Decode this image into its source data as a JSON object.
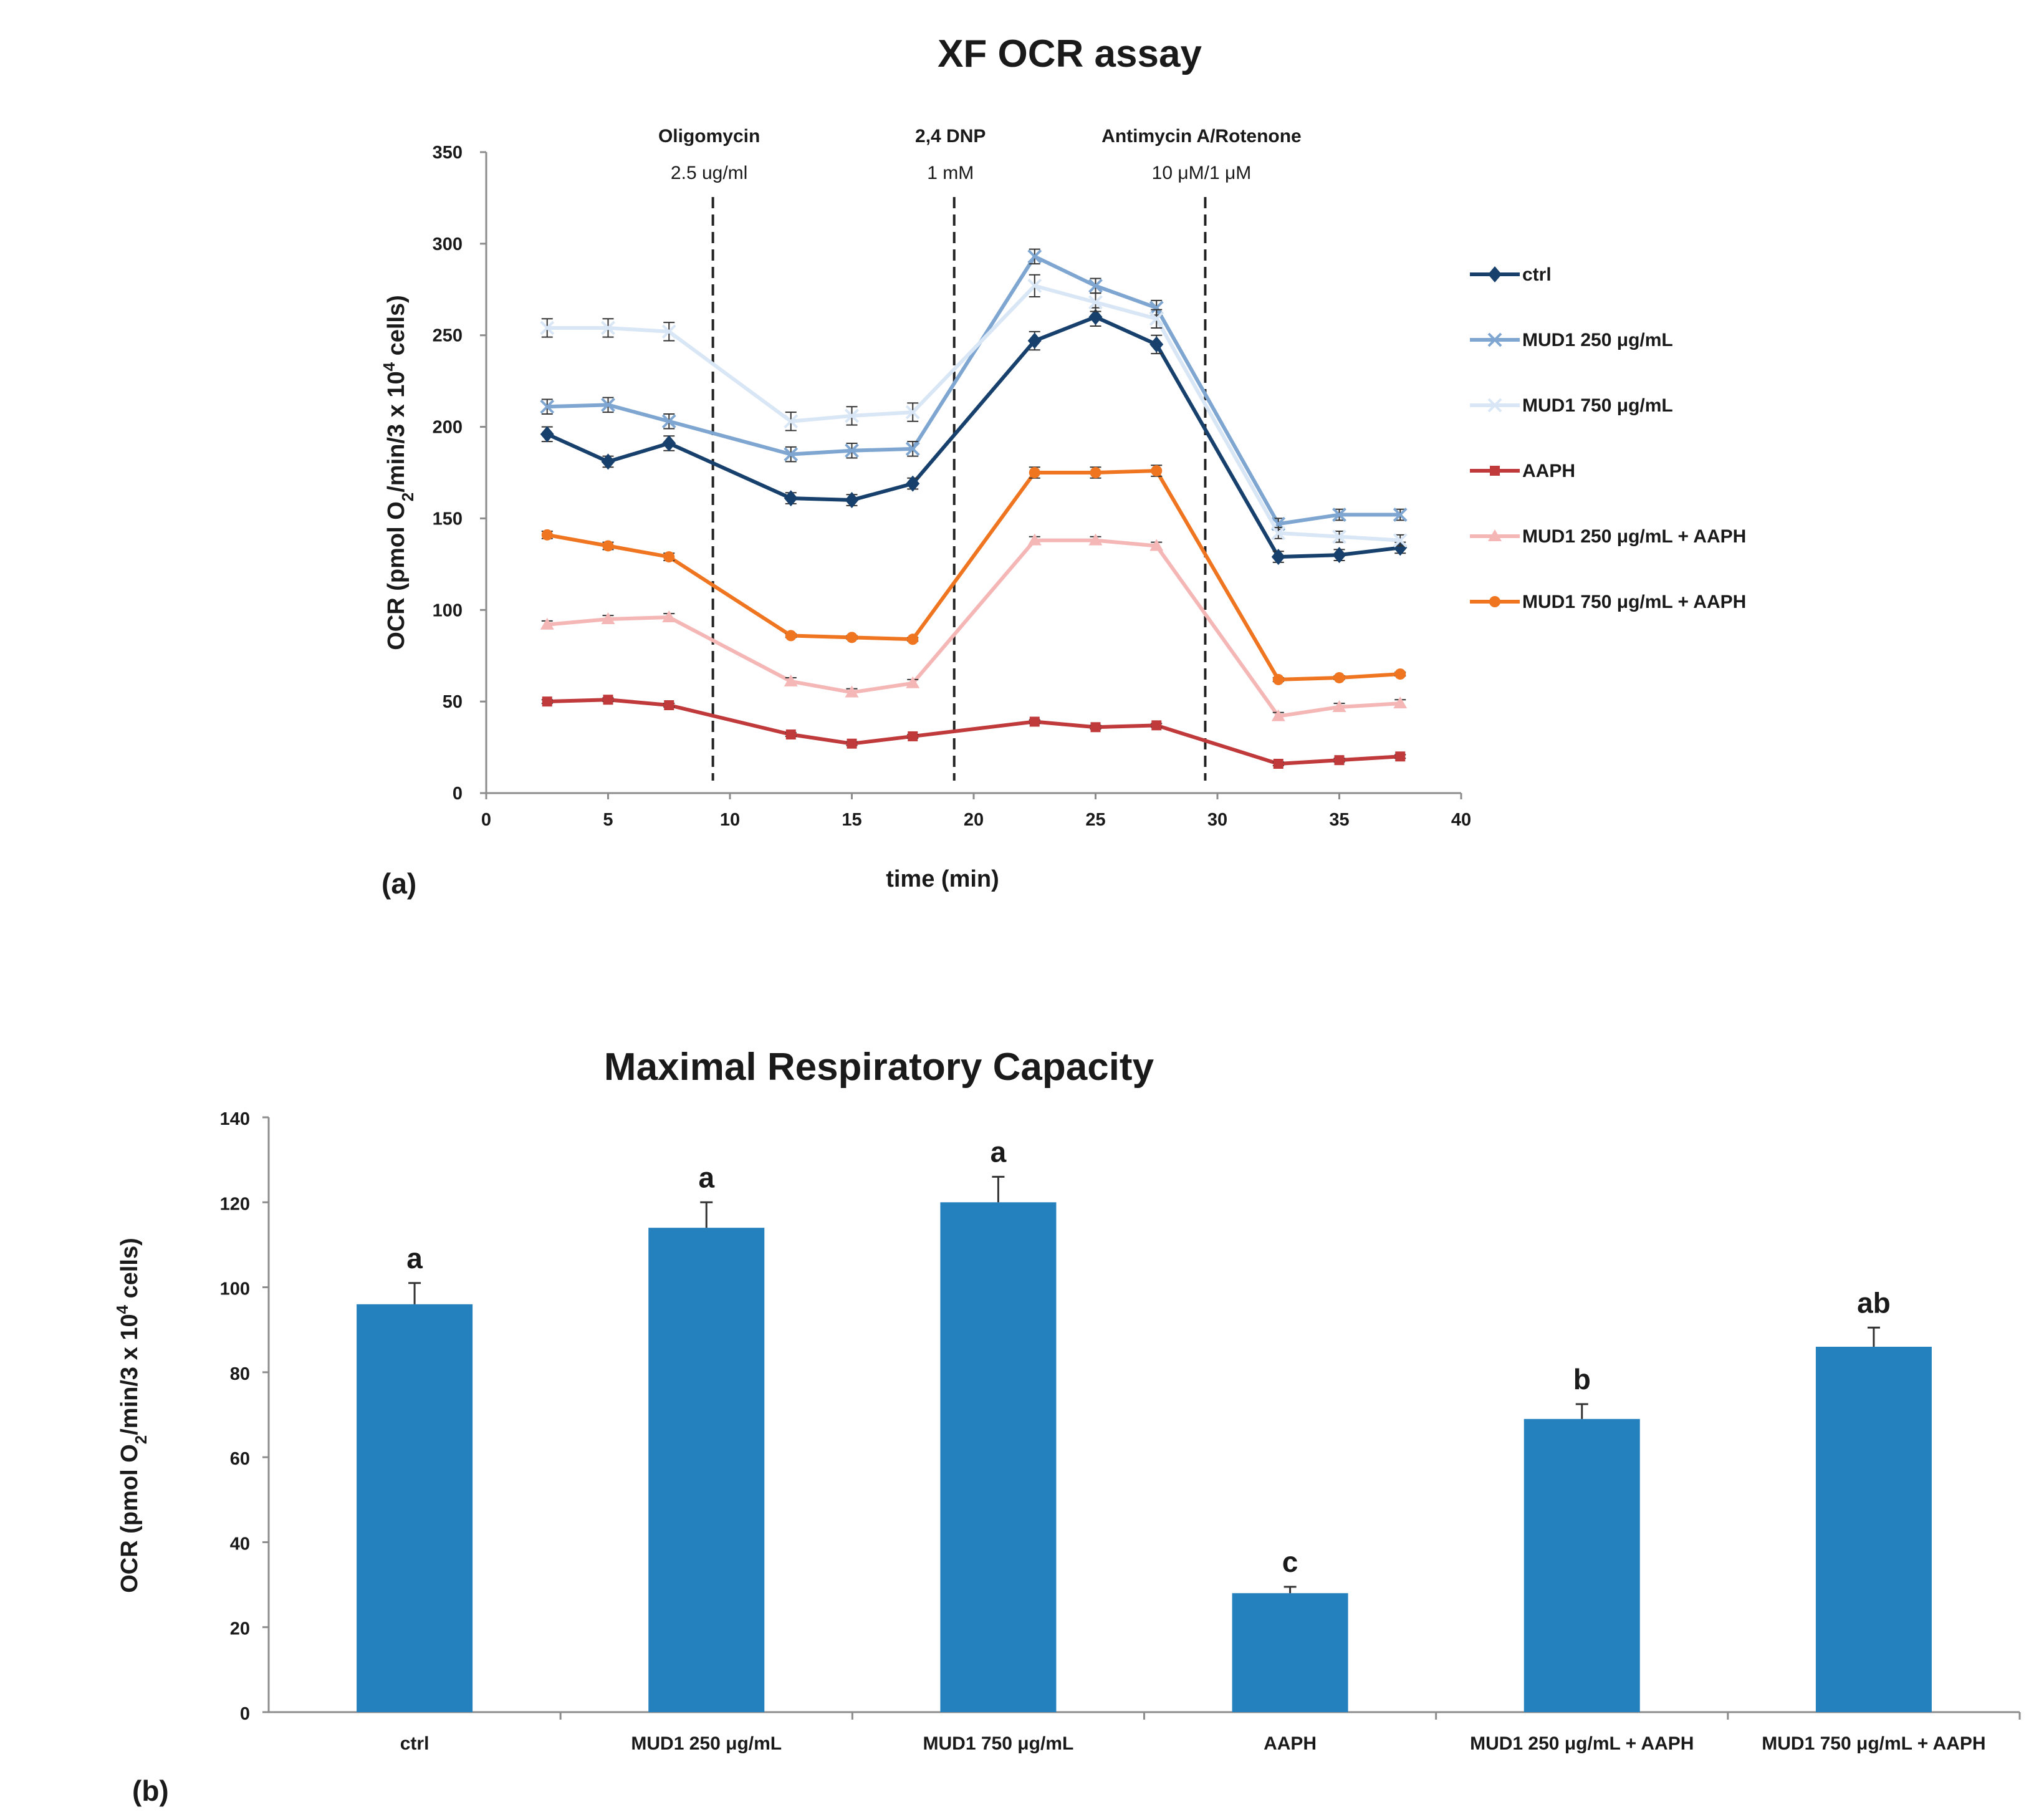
{
  "chart_data": [
    {
      "type": "line",
      "title": "XF OCR assay",
      "panel_label": "(a)",
      "xlabel": "time (min)",
      "ylabel": "OCR (pmol O2/min/3 x 10^4 cells)",
      "xlim": [
        0,
        40
      ],
      "ylim": [
        0,
        350
      ],
      "xticks": [
        0,
        5,
        10,
        15,
        20,
        25,
        30,
        35,
        40
      ],
      "yticks": [
        0,
        50,
        100,
        150,
        200,
        250,
        300,
        350
      ],
      "grid": false,
      "legend_position": "right",
      "injections": [
        {
          "label": "Oligomycin",
          "dose": "2.5 ug/ml",
          "x": 9.3
        },
        {
          "label": "2,4 DNP",
          "dose": "1 mM",
          "x": 19.2
        },
        {
          "label": "Antimycin A/Rotenone",
          "dose": "10 μM/1 μM",
          "x": 29.5
        }
      ],
      "x": [
        2.5,
        5,
        7.5,
        12.5,
        15,
        17.5,
        22.5,
        25,
        27.5,
        32.5,
        35,
        37.5
      ],
      "series": [
        {
          "name": "ctrl",
          "color": "#17406d",
          "marker": "diamond",
          "values": [
            196,
            181,
            191,
            161,
            160,
            169,
            247,
            260,
            245,
            129,
            130,
            134
          ],
          "errors": [
            4,
            3,
            4,
            3,
            3,
            3,
            5,
            5,
            5,
            3,
            3,
            3
          ]
        },
        {
          "name": "MUD1 250 μg/mL",
          "color": "#7ea6d1",
          "marker": "x",
          "values": [
            211,
            212,
            203,
            185,
            187,
            188,
            293,
            277,
            265,
            147,
            152,
            152
          ],
          "errors": [
            4,
            4,
            4,
            4,
            4,
            4,
            4,
            4,
            4,
            3,
            3,
            3
          ]
        },
        {
          "name": "MUD1 750 μg/mL",
          "color": "#d8e6f5",
          "marker": "x",
          "values": [
            254,
            254,
            252,
            203,
            206,
            208,
            277,
            268,
            259,
            142,
            140,
            138
          ],
          "errors": [
            5,
            5,
            5,
            5,
            5,
            5,
            6,
            5,
            5,
            3,
            3,
            3
          ]
        },
        {
          "name": "AAPH",
          "color": "#c0393b",
          "marker": "square",
          "values": [
            50,
            51,
            48,
            32,
            27,
            31,
            39,
            36,
            37,
            16,
            18,
            20
          ],
          "errors": [
            1,
            1,
            1,
            1,
            1,
            1,
            1,
            1,
            1,
            1,
            1,
            1
          ]
        },
        {
          "name": "MUD1 250 μg/mL + AAPH",
          "color": "#f4b7b6",
          "marker": "triangle",
          "values": [
            92,
            95,
            96,
            61,
            55,
            60,
            138,
            138,
            135,
            42,
            47,
            49
          ],
          "errors": [
            2,
            2,
            2,
            2,
            2,
            2,
            2,
            2,
            2,
            2,
            2,
            2
          ]
        },
        {
          "name": "MUD1 750 μg/mL + AAPH",
          "color": "#ef7521",
          "marker": "circle",
          "values": [
            141,
            135,
            129,
            86,
            85,
            84,
            175,
            175,
            176,
            62,
            63,
            65
          ],
          "errors": [
            2,
            2,
            2,
            1,
            1,
            1,
            3,
            3,
            3,
            1,
            1,
            1
          ]
        }
      ]
    },
    {
      "type": "bar",
      "title": "Maximal Respiratory Capacity",
      "panel_label": "(b)",
      "xlabel": "",
      "ylabel": "OCR (pmol O2/min/3 x 10^4 cells)",
      "ylim": [
        0,
        140
      ],
      "yticks": [
        0,
        20,
        40,
        60,
        80,
        100,
        120,
        140
      ],
      "grid": false,
      "color": "#2580be",
      "categories": [
        "ctrl",
        "MUD1 250 μg/mL",
        "MUD1 750 μg/mL",
        "AAPH",
        "MUD1 250 μg/mL + AAPH",
        "MUD1 750 μg/mL + AAPH"
      ],
      "values": [
        96,
        114,
        120,
        28,
        69,
        86
      ],
      "errors": [
        5,
        6,
        6,
        1.5,
        3.5,
        4.5
      ],
      "significance": [
        "a",
        "a",
        "a",
        "c",
        "b",
        "ab"
      ]
    }
  ]
}
